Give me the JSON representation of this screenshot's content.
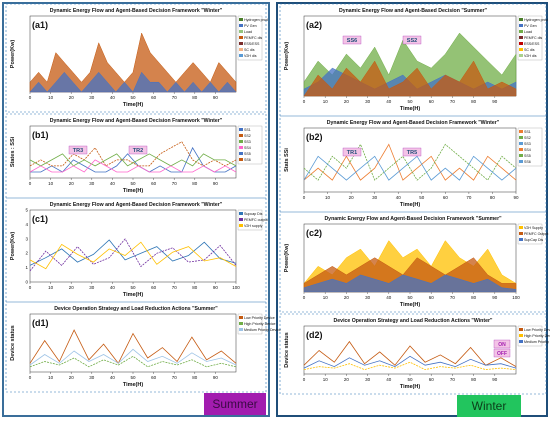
{
  "labels": {
    "summer_badge": "Summer",
    "winter_badge": "Winter"
  },
  "colors": {
    "summer": "#a21caf",
    "winter": "#22c55e",
    "frame": "#1f4e79"
  },
  "chart_data": [
    {
      "id": "a1",
      "type": "area",
      "tag": "(a1)",
      "title": "Dynamic Energy Flow and Agent-Based Decision Framework \"Winter\"",
      "xlabel": "Time(H)",
      "ylabel": "Power(Kw)",
      "xlim": [
        0,
        100
      ],
      "xticks": [
        0,
        10,
        20,
        30,
        40,
        50,
        60,
        70,
        80,
        90
      ],
      "legend": [
        "Hydrogen prod",
        "PV Gen",
        "Load",
        "PEMFC dis",
        "ESS/ESS",
        "SC dis",
        "V2H dis"
      ],
      "legend_colors": [
        "#4b7f2a",
        "#4472c4",
        "#93c47d",
        "#c55a11",
        "#7b2c2c",
        "#f4b183",
        "#5b9bd5"
      ],
      "series": [
        {
          "color": "#c55a11",
          "values": [
            1,
            2,
            1,
            4,
            3,
            2,
            1,
            2,
            5,
            3,
            2,
            1,
            2,
            6,
            4,
            3,
            2,
            1,
            2,
            3,
            2,
            1,
            3,
            2,
            1
          ]
        },
        {
          "color": "#4472c4",
          "values": [
            0,
            1,
            0,
            1,
            2,
            1,
            0,
            1,
            2,
            1,
            0,
            1,
            0,
            2,
            1,
            1,
            0,
            1,
            0,
            1,
            0,
            1,
            0,
            1,
            0
          ]
        }
      ]
    },
    {
      "id": "b1",
      "type": "line",
      "tag": "(b1)",
      "title": "Dynamic Energy Flow and Agent-Based Decision Framework \"Winter\"",
      "xlabel": "Time(H)",
      "ylabel": "States : SSi",
      "xlim": [
        0,
        100
      ],
      "xticks": [
        0,
        10,
        20,
        30,
        40,
        50,
        60,
        70,
        80,
        90
      ],
      "legend": [
        "SS1",
        "SS2",
        "SS3",
        "SS4",
        "SS5",
        "SS6"
      ],
      "annotations": [
        "TR3",
        "TR2"
      ],
      "series": [
        {
          "name": "SS1",
          "color": "#4472c4",
          "values": [
            1,
            1,
            2,
            1,
            3,
            2,
            1,
            1,
            2,
            4,
            2,
            1,
            2,
            1,
            1,
            5,
            2,
            1,
            1,
            2
          ]
        },
        {
          "name": "SS2",
          "color": "#c55a11",
          "values": [
            2,
            3,
            2,
            2,
            4,
            3,
            5,
            2,
            3,
            3,
            2,
            2,
            4,
            5,
            6,
            3,
            2,
            3,
            2,
            3
          ]
        },
        {
          "name": "SS3",
          "color": "#70ad47",
          "values": [
            3,
            2,
            3,
            4,
            2,
            3,
            2,
            3,
            4,
            2,
            3,
            4,
            3,
            2,
            3,
            2,
            4,
            3,
            3,
            2
          ]
        },
        {
          "name": "SS4",
          "color": "#ff66cc",
          "values": [
            1,
            2,
            1,
            1,
            2,
            1,
            3,
            2,
            1,
            1,
            2,
            1,
            1,
            2,
            1,
            1,
            2,
            1,
            2,
            1
          ]
        }
      ]
    },
    {
      "id": "c1",
      "type": "line",
      "tag": "(c1)",
      "title": "Dynamic Energy Flow and Agent-Based Decision Framework \"Winter\"",
      "xlabel": "Time(H)",
      "ylabel": "Power(Kw)",
      "xlim": [
        0,
        100
      ],
      "xticks": [
        0,
        10,
        20,
        30,
        40,
        50,
        60,
        70,
        80,
        90,
        100
      ],
      "ylim": [
        0,
        5
      ],
      "yticks": [
        0,
        1,
        2,
        3,
        4,
        5
      ],
      "legend": [
        "Supcap Dis",
        "PEMFC output",
        "V2H supply"
      ],
      "series": [
        {
          "name": "Supcap Dis",
          "color": "#2e75b6",
          "values": [
            1.5,
            2.2,
            3.0,
            1.8,
            2.5,
            3.8,
            2.0,
            2.6,
            3.2,
            1.9,
            2.4,
            3.6,
            2.1,
            1.7
          ]
        },
        {
          "name": "PEMFC output",
          "color": "#7030a0",
          "values": [
            1.0,
            2.8,
            1.5,
            3.2,
            1.6,
            2.2,
            3.9,
            1.4,
            2.6,
            3.1,
            1.8,
            2.0,
            3.3,
            1.5
          ]
        },
        {
          "name": "V2H supply",
          "color": "#ffc000",
          "values": [
            2.0,
            1.2,
            3.4,
            2.5,
            1.8,
            3.0,
            2.4,
            3.6,
            1.6,
            2.7,
            3.2,
            1.9,
            2.2,
            1.4
          ]
        }
      ]
    },
    {
      "id": "d1",
      "type": "line",
      "tag": "(d1)",
      "title": "Device Operation Strategy and Load Reduction Actions \"Summer\"",
      "xlabel": "Time(H)",
      "ylabel": "Device status",
      "xlim": [
        0,
        100
      ],
      "xticks": [
        0,
        10,
        20,
        30,
        40,
        50,
        60,
        70,
        80,
        90
      ],
      "legend": [
        "Low Priority Device",
        "High Priority Device",
        "Medium Priority Device"
      ],
      "series": [
        {
          "name": "Low Priority Device",
          "color": "#c55a11",
          "values": [
            0.5,
            1.8,
            0.6,
            2.4,
            0.7,
            1.6,
            0.5,
            2.2,
            0.8,
            1.4,
            0.6,
            2.0,
            0.7,
            1.2,
            0.5
          ]
        },
        {
          "name": "High Priority Device",
          "color": "#70ad47",
          "values": [
            0.3,
            0.6,
            0.4,
            0.8,
            0.3,
            0.7,
            0.4,
            0.9,
            0.3,
            0.6,
            0.4,
            0.7,
            0.3,
            0.5,
            0.3
          ]
        },
        {
          "name": "Medium Priority Device",
          "color": "#9dc3e6",
          "values": [
            0.4,
            1.0,
            0.5,
            1.2,
            0.6,
            1.0,
            0.5,
            1.3,
            0.6,
            0.9,
            0.5,
            1.1,
            0.6,
            0.8,
            0.4
          ]
        }
      ]
    },
    {
      "id": "a2",
      "type": "area",
      "tag": "(a2)",
      "title": "Dynamic Energy Flow and Agent-Based Decision \"Summer\"",
      "xlabel": "Time(H)",
      "ylabel": "Power(Kw)",
      "xlim": [
        0,
        100
      ],
      "xticks": [
        0,
        10,
        20,
        30,
        40,
        50,
        60,
        70,
        80,
        90
      ],
      "legend": [
        "Hydrogen prod",
        "PV Gen",
        "Load",
        "PEMFC dis",
        "ESS/ESS",
        "SC dis",
        "V2H dis"
      ],
      "legend_colors": [
        "#4b7f2a",
        "#4472c4",
        "#70ad47",
        "#7b2c2c",
        "#c00000",
        "#ffc000",
        "#a9d18e"
      ],
      "annotations": [
        "SS6",
        "SS2"
      ],
      "series": [
        {
          "color": "#70ad47",
          "values": [
            2,
            5,
            3,
            6,
            4,
            7,
            3,
            8,
            5,
            4,
            6,
            9,
            7,
            5,
            3,
            6
          ]
        },
        {
          "color": "#4472c4",
          "values": [
            1,
            2,
            4,
            3,
            2,
            1,
            2,
            3,
            1,
            2,
            3,
            2,
            1,
            2,
            1,
            2
          ]
        },
        {
          "color": "#c55a11",
          "values": [
            0,
            3,
            1,
            4,
            2,
            5,
            1,
            2,
            4,
            1,
            3,
            2,
            5,
            1,
            2,
            1
          ]
        }
      ]
    },
    {
      "id": "b2",
      "type": "line",
      "tag": "(b2)",
      "title": "Dynamic Energy Flow and Agent-Based Decision Framework \"Winter\"",
      "xlabel": "Time(H)",
      "ylabel": "Stats SSi",
      "xlim": [
        0,
        90
      ],
      "xticks": [
        0,
        10,
        20,
        30,
        40,
        50,
        60,
        70,
        80,
        90
      ],
      "legend": [
        "SS1",
        "SS2",
        "SS3",
        "SS4",
        "SS5",
        "SS6"
      ],
      "annotations": [
        "TR1",
        "TR5"
      ],
      "series": [
        {
          "name": "SS1",
          "color": "#ed7d31",
          "values": [
            1,
            2,
            1,
            3,
            1,
            2,
            4,
            1,
            2,
            3,
            1,
            2,
            1,
            3,
            2,
            1
          ]
        },
        {
          "name": "SS2",
          "color": "#70ad47",
          "values": [
            2,
            1,
            3,
            2,
            4,
            1,
            2,
            3,
            1,
            2,
            4,
            3,
            2,
            1,
            3,
            2
          ]
        },
        {
          "name": "SS3",
          "color": "#5b9bd5",
          "values": [
            1,
            3,
            2,
            1,
            2,
            3,
            1,
            2,
            3,
            1,
            2,
            1,
            3,
            2,
            1,
            2
          ]
        }
      ]
    },
    {
      "id": "c2",
      "type": "area",
      "tag": "(c2)",
      "title": "Dynamic Energy Flow and Agent-Based Decision Framework \"Summer\"",
      "xlabel": "Time(H)",
      "ylabel": "Power(Kw)",
      "xlim": [
        0,
        100
      ],
      "xticks": [
        0,
        10,
        20,
        30,
        40,
        50,
        60,
        70,
        80,
        90,
        100
      ],
      "legend": [
        "V2H Supply",
        "PEMFC Output",
        "SupCap Dis"
      ],
      "series": [
        {
          "name": "V2H Supply",
          "color": "#ffc000",
          "values": [
            1,
            3,
            2,
            4,
            5,
            3,
            6,
            4,
            5,
            3,
            6,
            4,
            3,
            5,
            2,
            1
          ]
        },
        {
          "name": "PEMFC Output",
          "color": "#c55a11",
          "values": [
            1,
            2,
            3,
            2,
            3,
            4,
            3,
            2,
            4,
            3,
            2,
            3,
            4,
            2,
            1,
            1
          ]
        },
        {
          "name": "SupCap Dis",
          "color": "#4472c4",
          "values": [
            0.5,
            1,
            1.5,
            1,
            2,
            1.5,
            1,
            2,
            1.5,
            1,
            2,
            1.5,
            1,
            1.5,
            0.5,
            0.3
          ]
        }
      ]
    },
    {
      "id": "d2",
      "type": "line",
      "tag": "(d2)",
      "title": "Device Operation Strategy and Load Reduction Actions \"Winter\"",
      "xlabel": "Time(H)",
      "ylabel": "Device status",
      "xlim": [
        0,
        100
      ],
      "xticks": [
        0,
        10,
        20,
        30,
        40,
        50,
        60,
        70,
        80,
        90
      ],
      "legend": [
        "Low Priority Device",
        "High Priority Device",
        "Medium Priority Device"
      ],
      "inset_legend": [
        "ON",
        "OFF"
      ],
      "series": [
        {
          "name": "Low Priority Device",
          "color": "#c55a11",
          "values": [
            0.6,
            1.6,
            0.8,
            2.2,
            0.7,
            1.5,
            0.6,
            1.9,
            0.8,
            1.3,
            0.7,
            1.8,
            0.6,
            1.1,
            0.5
          ]
        },
        {
          "name": "High Priority Device",
          "color": "#ffc000",
          "values": [
            0.3,
            0.5,
            0.4,
            0.7,
            0.3,
            0.6,
            0.4,
            0.8,
            0.3,
            0.5,
            0.4,
            0.6,
            0.3,
            0.4,
            0.3
          ]
        },
        {
          "name": "Medium Priority Device",
          "color": "#4472c4",
          "values": [
            0.4,
            0.9,
            0.5,
            1.1,
            0.6,
            0.9,
            0.5,
            1.2,
            0.6,
            0.8,
            0.5,
            1.0,
            0.6,
            0.7,
            0.4
          ]
        }
      ]
    }
  ]
}
